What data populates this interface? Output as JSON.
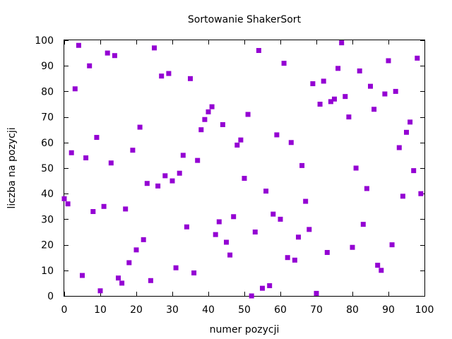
{
  "chart_data": {
    "type": "scatter",
    "title": "Sortowanie ShakerSort",
    "xlabel": "numer pozycji",
    "ylabel": "liczba na pozycji",
    "xlim": [
      0,
      100
    ],
    "ylim": [
      0,
      100
    ],
    "xticks": [
      0,
      10,
      20,
      30,
      40,
      50,
      60,
      70,
      80,
      90,
      100
    ],
    "yticks": [
      0,
      10,
      20,
      30,
      40,
      50,
      60,
      70,
      80,
      90,
      100
    ],
    "marker_color": "#9400d3",
    "marker": "square",
    "grid": false,
    "x": [
      0,
      1,
      2,
      3,
      4,
      5,
      6,
      7,
      8,
      9,
      10,
      11,
      12,
      13,
      14,
      15,
      16,
      17,
      18,
      19,
      20,
      21,
      22,
      23,
      24,
      25,
      26,
      27,
      28,
      29,
      30,
      31,
      32,
      33,
      34,
      35,
      36,
      37,
      38,
      39,
      40,
      41,
      42,
      43,
      44,
      45,
      46,
      47,
      48,
      49,
      50,
      51,
      52,
      53,
      54,
      55,
      56,
      57,
      58,
      59,
      60,
      61,
      62,
      63,
      64,
      65,
      66,
      67,
      68,
      69,
      70,
      71,
      72,
      73,
      74,
      75,
      76,
      77,
      78,
      79,
      80,
      81,
      82,
      83,
      84,
      85,
      86,
      87,
      88,
      89,
      90,
      91,
      92,
      93,
      94,
      95,
      96,
      97,
      98,
      99
    ],
    "y": [
      38,
      36,
      56,
      81,
      98,
      8,
      54,
      90,
      33,
      62,
      2,
      35,
      95,
      52,
      94,
      7,
      5,
      34,
      13,
      57,
      18,
      66,
      22,
      44,
      6,
      97,
      43,
      86,
      47,
      87,
      45,
      11,
      48,
      55,
      27,
      85,
      9,
      53,
      65,
      69,
      72,
      74,
      24,
      29,
      67,
      21,
      16,
      31,
      59,
      61,
      46,
      71,
      0,
      25,
      96,
      3,
      41,
      4,
      32,
      63,
      30,
      91,
      15,
      60,
      14,
      23,
      51,
      37,
      26,
      83,
      1,
      75,
      84,
      17,
      76,
      77,
      89,
      99,
      78,
      70,
      19,
      50,
      88,
      28,
      42,
      82,
      73,
      12,
      10,
      79,
      92,
      20,
      80,
      58,
      39,
      64,
      68,
      49,
      93,
      40
    ]
  }
}
